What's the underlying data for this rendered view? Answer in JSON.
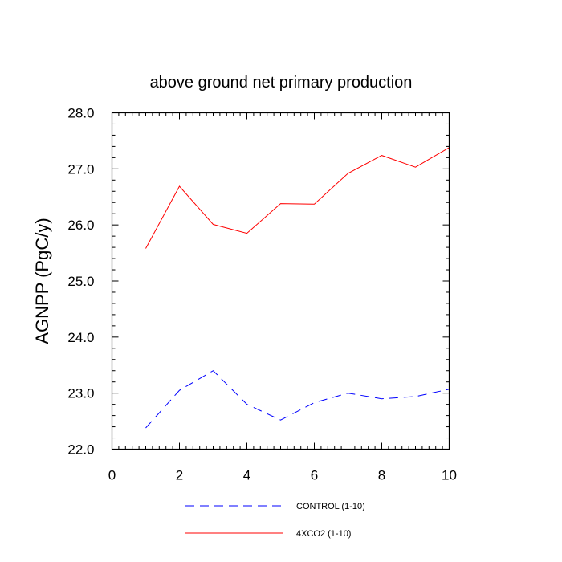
{
  "chart_data": {
    "type": "line",
    "title": "above ground net primary production",
    "xlabel": "",
    "ylabel": "AGNPP  (PgC/y)",
    "xlim": [
      0,
      10
    ],
    "ylim": [
      22.0,
      28.0
    ],
    "x_ticks": [
      0,
      2,
      4,
      6,
      8,
      10
    ],
    "x_tick_labels": [
      "0",
      "2",
      "4",
      "6",
      "8",
      "10"
    ],
    "y_ticks": [
      22.0,
      23.0,
      24.0,
      25.0,
      26.0,
      27.0,
      28.0
    ],
    "y_tick_labels": [
      "22.0",
      "23.0",
      "24.0",
      "25.0",
      "26.0",
      "27.0",
      "28.0"
    ],
    "grid": false,
    "legend_position": "bottom",
    "series": [
      {
        "name": "CONTROL (1-10)",
        "color": "#0000ff",
        "style": "dashed",
        "x": [
          1,
          2,
          3,
          4,
          5,
          6,
          7,
          8,
          9,
          10
        ],
        "y": [
          22.38,
          23.05,
          23.4,
          22.8,
          22.52,
          22.83,
          23.0,
          22.9,
          22.94,
          23.07
        ]
      },
      {
        "name": "4XCO2 (1-10)",
        "color": "#ff0000",
        "style": "solid",
        "x": [
          1,
          2,
          3,
          4,
          5,
          6,
          7,
          8,
          9,
          10
        ],
        "y": [
          25.58,
          26.69,
          26.01,
          25.85,
          26.38,
          26.37,
          26.92,
          27.24,
          27.03,
          27.38
        ]
      }
    ]
  }
}
